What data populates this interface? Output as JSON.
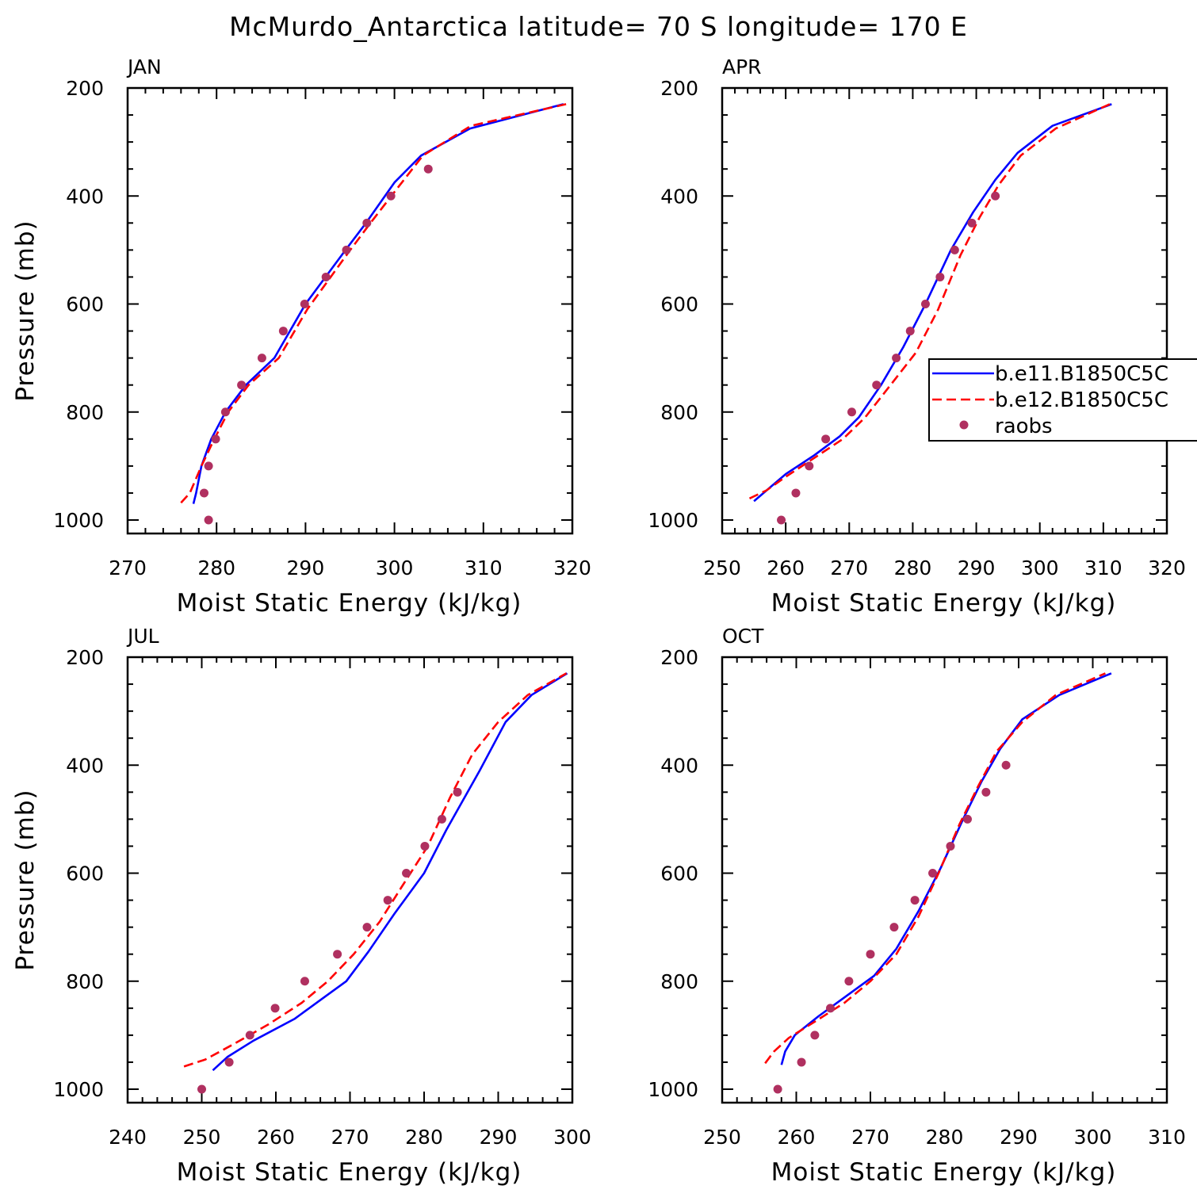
{
  "title": "McMurdo_Antarctica  latitude= 70 S longitude= 170 E",
  "legend": {
    "entries": [
      {
        "label": "b.e11.B1850C5C",
        "style": "solid",
        "color": "#0000ff"
      },
      {
        "label": "b.e12.B1850C5C",
        "style": "dashed",
        "color": "#ff0000"
      },
      {
        "label": "raobs",
        "style": "marker",
        "color": "#b03060"
      }
    ]
  },
  "colors": {
    "series1": "#0000ff",
    "series2": "#ff0000",
    "obs": "#b03060"
  },
  "chart_data": [
    {
      "type": "line",
      "panel": "JAN",
      "xlabel": "Moist Static Energy (kJ/kg)",
      "ylabel": "Pressure (mb)",
      "xlim": [
        270,
        320
      ],
      "ylim": [
        1000,
        200
      ],
      "xticks": [
        270,
        280,
        290,
        300,
        310,
        320
      ],
      "yticks": [
        200,
        400,
        600,
        800,
        1000
      ],
      "series": [
        {
          "name": "b.e11.B1850C5C",
          "x": [
            277.4,
            277.7,
            278.3,
            279.4,
            281,
            283.3,
            286.5,
            290,
            294.5,
            296.8,
            300,
            303,
            308.5,
            319
          ],
          "y": [
            970,
            950,
            900,
            850,
            800,
            750,
            700,
            600,
            500,
            450,
            375,
            325,
            275,
            230
          ]
        },
        {
          "name": "b.e12.B1850C5C",
          "x": [
            276,
            277,
            278.3,
            279.6,
            281.3,
            283.6,
            287,
            290.2,
            294.8,
            297.3,
            300.6,
            303.2,
            308.6,
            319.3
          ],
          "y": [
            968,
            950,
            900,
            855,
            800,
            750,
            700,
            610,
            505,
            450,
            380,
            325,
            270,
            230
          ]
        },
        {
          "name": "raobs",
          "x": [
            279.1,
            278.6,
            279.1,
            279.9,
            281,
            282.8,
            285.1,
            287.5,
            289.9,
            292.3,
            294.6,
            296.9,
            299.6,
            303.8
          ],
          "y": [
            1000,
            950,
            900,
            850,
            800,
            750,
            700,
            650,
            600,
            550,
            500,
            450,
            400,
            350
          ]
        }
      ]
    },
    {
      "type": "line",
      "panel": "APR",
      "xlabel": "Moist Static Energy (kJ/kg)",
      "ylabel": "",
      "xlim": [
        250,
        320
      ],
      "ylim": [
        1000,
        200
      ],
      "xticks": [
        250,
        260,
        270,
        280,
        290,
        300,
        310,
        320
      ],
      "yticks": [
        200,
        400,
        600,
        800,
        1000
      ],
      "series": [
        {
          "name": "b.e11.B1850C5C",
          "x": [
            255,
            257.5,
            260,
            264.5,
            268.5,
            271.5,
            275,
            278.5,
            282,
            286,
            289.5,
            293,
            296.5,
            302,
            311.3
          ],
          "y": [
            965,
            940,
            915,
            880,
            845,
            810,
            750,
            680,
            600,
            500,
            430,
            370,
            320,
            270,
            230
          ]
        },
        {
          "name": "b.e12.B1850C5C",
          "x": [
            254.3,
            257,
            260,
            264.5,
            269,
            272.5,
            276.5,
            280.5,
            284,
            287.5,
            290.5,
            293.5,
            297,
            302.5,
            311
          ],
          "y": [
            960,
            945,
            920,
            885,
            850,
            810,
            750,
            690,
            610,
            510,
            440,
            380,
            325,
            275,
            230
          ]
        },
        {
          "name": "raobs",
          "x": [
            259.3,
            261.6,
            263.7,
            266.3,
            270.4,
            274.3,
            277.4,
            279.6,
            282,
            284.3,
            286.6,
            289.3,
            293
          ],
          "y": [
            1000,
            950,
            900,
            850,
            800,
            750,
            700,
            650,
            600,
            550,
            500,
            450,
            400
          ]
        }
      ]
    },
    {
      "type": "line",
      "panel": "JUL",
      "xlabel": "Moist Static Energy (kJ/kg)",
      "ylabel": "Pressure (mb)",
      "xlim": [
        240,
        300
      ],
      "ylim": [
        1000,
        200
      ],
      "xticks": [
        240,
        250,
        260,
        270,
        280,
        290,
        300
      ],
      "yticks": [
        200,
        400,
        600,
        800,
        1000
      ],
      "series": [
        {
          "name": "b.e11.B1850C5C",
          "x": [
            251.5,
            253.5,
            257,
            262.5,
            266,
            269.5,
            272.5,
            276,
            280,
            283,
            287.5,
            291,
            294.5,
            299.3
          ],
          "y": [
            965,
            940,
            910,
            870,
            835,
            800,
            745,
            675,
            600,
            520,
            410,
            320,
            270,
            230
          ]
        },
        {
          "name": "b.e12.B1850C5C",
          "x": [
            247.6,
            250.5,
            254.5,
            259,
            263.5,
            267,
            270.5,
            274,
            277,
            280.5,
            283.5,
            286.5,
            290,
            294,
            299.2
          ],
          "y": [
            958,
            945,
            915,
            880,
            840,
            800,
            750,
            690,
            625,
            550,
            460,
            380,
            320,
            270,
            230
          ]
        },
        {
          "name": "raobs",
          "x": [
            250,
            253.7,
            256.5,
            259.9,
            263.9,
            268.3,
            272.3,
            275.1,
            277.6,
            280.1,
            282.4,
            284.5
          ],
          "y": [
            1000,
            950,
            900,
            850,
            800,
            750,
            700,
            650,
            600,
            550,
            500,
            450
          ]
        }
      ]
    },
    {
      "type": "line",
      "panel": "OCT",
      "xlabel": "Moist Static Energy (kJ/kg)",
      "ylabel": "",
      "xlim": [
        250,
        310
      ],
      "ylim": [
        1000,
        200
      ],
      "xticks": [
        250,
        260,
        270,
        280,
        290,
        300,
        310
      ],
      "yticks": [
        200,
        400,
        600,
        800,
        1000
      ],
      "series": [
        {
          "name": "b.e11.B1850C5C",
          "x": [
            258,
            258.5,
            259.8,
            263,
            266.5,
            270.5,
            273.5,
            276.5,
            279.5,
            282.5,
            285,
            287.5,
            290.5,
            295.5,
            302.5
          ],
          "y": [
            955,
            930,
            900,
            865,
            830,
            790,
            740,
            670,
            590,
            500,
            430,
            370,
            315,
            270,
            230
          ]
        },
        {
          "name": "b.e12.B1850C5C",
          "x": [
            255.8,
            257,
            259,
            262.5,
            266.5,
            270,
            273.5,
            276.5,
            279.2,
            282,
            284.5,
            287,
            290.5,
            295,
            301.7
          ],
          "y": [
            952,
            930,
            905,
            875,
            840,
            800,
            750,
            680,
            600,
            510,
            440,
            375,
            320,
            270,
            230
          ]
        },
        {
          "name": "raobs",
          "x": [
            257.5,
            260.7,
            262.5,
            264.6,
            267.1,
            270,
            273.2,
            276,
            278.4,
            280.8,
            283.1,
            285.6,
            288.3
          ],
          "y": [
            1000,
            950,
            900,
            850,
            800,
            750,
            700,
            650,
            600,
            550,
            500,
            450,
            400
          ]
        }
      ]
    }
  ]
}
